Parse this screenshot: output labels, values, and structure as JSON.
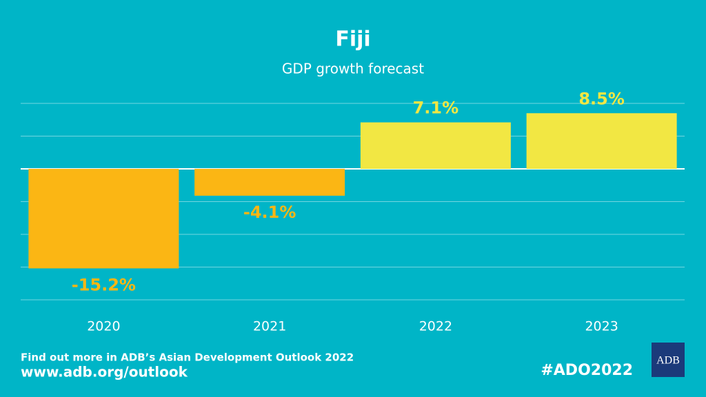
{
  "chart_data": {
    "type": "bar",
    "title": "Fiji",
    "subtitle": "GDP growth forecast",
    "categories": [
      "2020",
      "2021",
      "2022",
      "2023"
    ],
    "values": [
      -15.2,
      -4.1,
      7.1,
      8.5
    ],
    "value_labels": [
      "-15.2%",
      "-4.1%",
      "7.1%",
      "8.5%"
    ],
    "colors": [
      "#fbb614",
      "#fbb614",
      "#f2e743",
      "#f2e743"
    ],
    "ylim": [
      -20,
      10
    ],
    "yticks": [
      -20,
      -15,
      -10,
      -5,
      0,
      5,
      10
    ],
    "grid": true
  },
  "footer": {
    "note": "Find out more in ADB’s Asian Development Outlook 2022",
    "url": "www.adb.org/outlook",
    "hashtag": "#ADO2022",
    "logo": "ADB"
  }
}
